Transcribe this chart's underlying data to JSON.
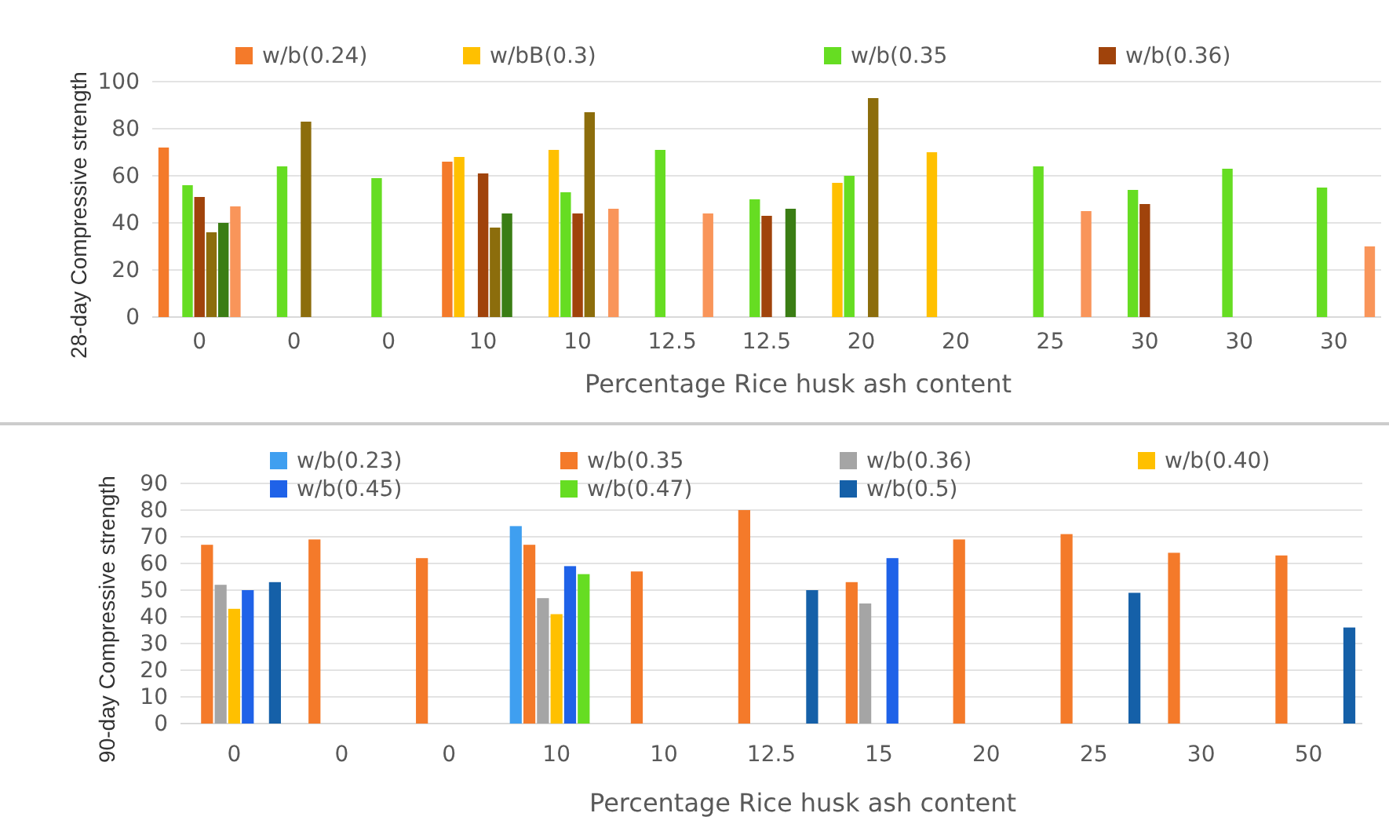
{
  "chart_data": [
    {
      "type": "bar",
      "ylabel": "28-day Compressive strength",
      "xlabel": "Percentage Rice husk ash content",
      "categories": [
        "0",
        "0",
        "0",
        "10",
        "10",
        "12.5",
        "12.5",
        "20",
        "20",
        "25",
        "30",
        "30",
        "30"
      ],
      "ylim": [
        0,
        100
      ],
      "yticks": [
        0,
        20,
        40,
        60,
        80,
        100
      ],
      "grid": "y",
      "legend": "top",
      "series": [
        {
          "name": "w/b(0.24)",
          "color": "#f47a2a",
          "values": [
            72,
            null,
            null,
            66,
            null,
            null,
            null,
            null,
            null,
            null,
            null,
            null,
            null
          ]
        },
        {
          "name": "w/bB(0.3)",
          "color": "#ffc000",
          "values": [
            null,
            null,
            null,
            68,
            71,
            null,
            null,
            57,
            70,
            null,
            null,
            null,
            null
          ]
        },
        {
          "name": "w/b(0.35",
          "color": "#66dd22",
          "values": [
            56,
            64,
            59,
            null,
            53,
            71,
            50,
            60,
            null,
            64,
            54,
            63,
            55
          ]
        },
        {
          "name": "w/b(0.36)",
          "color": "#a0430b",
          "values": [
            51,
            null,
            null,
            61,
            44,
            null,
            43,
            null,
            null,
            null,
            48,
            null,
            null
          ]
        },
        {
          "color": "#8c6d0c",
          "values": [
            36,
            83,
            null,
            38,
            87,
            null,
            null,
            93,
            null,
            null,
            null,
            null,
            null
          ]
        },
        {
          "color": "#3a7d14",
          "values": [
            40,
            null,
            null,
            44,
            null,
            null,
            46,
            null,
            null,
            null,
            null,
            null,
            null
          ]
        },
        {
          "color": "#f9955a",
          "values": [
            47,
            null,
            null,
            null,
            46,
            44,
            null,
            null,
            null,
            45,
            null,
            null,
            30
          ]
        }
      ]
    },
    {
      "type": "bar",
      "ylabel": "90-day Compressive strength",
      "xlabel": "Percentage Rice husk ash content",
      "categories": [
        "0",
        "0",
        "0",
        "10",
        "10",
        "12.5",
        "15",
        "20",
        "25",
        "30",
        "50"
      ],
      "ylim": [
        0,
        90
      ],
      "yticks": [
        0,
        10,
        20,
        30,
        40,
        50,
        60,
        70,
        80,
        90
      ],
      "grid": "y",
      "legend": "top",
      "series": [
        {
          "name": "w/b(0.23)",
          "color": "#3f9ff0",
          "values": [
            null,
            null,
            null,
            74,
            null,
            null,
            null,
            null,
            null,
            null,
            null
          ]
        },
        {
          "name": "w/b(0.35",
          "color": "#f47a2a",
          "values": [
            67,
            69,
            62,
            67,
            57,
            80,
            53,
            69,
            71,
            64,
            63
          ]
        },
        {
          "name": "w/b(0.36)",
          "color": "#a5a5a5",
          "values": [
            52,
            null,
            null,
            47,
            null,
            null,
            45,
            null,
            null,
            null,
            null
          ]
        },
        {
          "name": "w/b(0.40)",
          "color": "#ffc000",
          "values": [
            43,
            null,
            null,
            41,
            null,
            null,
            null,
            null,
            null,
            null,
            null
          ]
        },
        {
          "name": "w/b(0.45)",
          "color": "#1f62e8",
          "values": [
            50,
            null,
            null,
            59,
            null,
            null,
            62,
            null,
            null,
            null,
            null
          ]
        },
        {
          "name": "w/b(0.47)",
          "color": "#66dd22",
          "values": [
            null,
            null,
            null,
            56,
            null,
            null,
            null,
            null,
            null,
            null,
            null
          ]
        },
        {
          "name": "w/b(0.5)",
          "color": "#1560a8",
          "values": [
            53,
            null,
            null,
            null,
            null,
            50,
            null,
            null,
            49,
            null,
            36
          ]
        }
      ]
    }
  ]
}
